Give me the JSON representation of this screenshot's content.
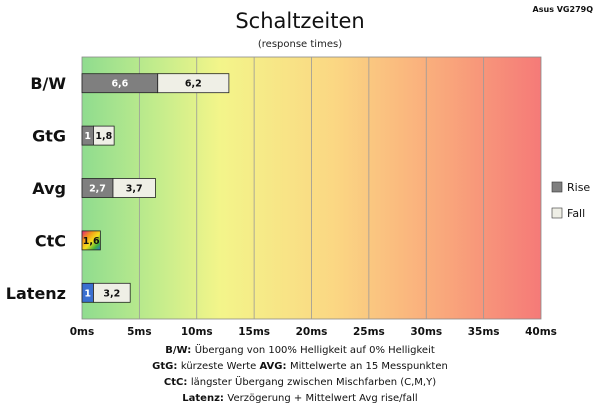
{
  "chart_data": {
    "type": "bar",
    "orientation": "horizontal",
    "stacked": true,
    "title": "Schaltzeiten",
    "subtitle": "(response times)",
    "corner_label": "Asus VG279Q",
    "categories": [
      "B/W",
      "GtG",
      "Avg",
      "CtC",
      "Latenz"
    ],
    "series": [
      {
        "name": "Rise",
        "values": [
          6.6,
          1,
          2.7,
          1.6,
          1
        ],
        "labels": [
          "6,6",
          "1",
          "2,7",
          "1,6",
          "1"
        ]
      },
      {
        "name": "Fall",
        "values": [
          6.2,
          1.8,
          3.7,
          null,
          3.2
        ],
        "labels": [
          "6,2",
          "1,8",
          "3,7",
          "",
          "3,2"
        ]
      }
    ],
    "xlim": [
      0,
      40
    ],
    "xticks": [
      0,
      5,
      10,
      15,
      20,
      25,
      30,
      35,
      40
    ],
    "xtick_labels": [
      "0ms",
      "5ms",
      "10ms",
      "15ms",
      "20ms",
      "25ms",
      "30ms",
      "35ms",
      "40ms"
    ],
    "grid": true,
    "legend_position": "right",
    "background_gradient": "green-yellow-red",
    "colors": {
      "rise": "#7f7f7f",
      "fall": "#efefe6",
      "latenz_rise": "#3a6fd0",
      "ctc": "rainbow",
      "grid": "#9a9a9a"
    },
    "footnotes": [
      {
        "key": "B/W",
        "text": "Übergang von 100% Helligkeit auf 0% Helligkeit"
      },
      {
        "key": "GtG",
        "text": "kürzeste Werte",
        "key2": "AVG",
        "text2": "Mittelwerte an 15 Messpunkten"
      },
      {
        "key": "CtC",
        "text": "längster Übergang zwischen Mischfarben (C,M,Y)"
      },
      {
        "key": "Latenz",
        "text": "Verzögerung + Mittelwert Avg rise/fall"
      }
    ]
  }
}
